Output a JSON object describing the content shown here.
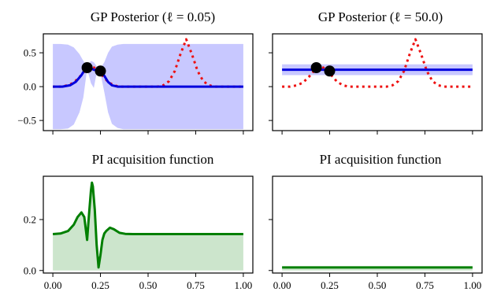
{
  "chart_data": [
    {
      "id": "gp-short",
      "type": "line",
      "title": "GP Posterior (ℓ = 0.05)",
      "xlim": [
        -0.05,
        1.05
      ],
      "ylim": [
        -0.65,
        0.78
      ],
      "xticks": [
        "0.00",
        "0.25",
        "0.50",
        "0.75",
        "1.00"
      ],
      "xtick_values": [
        0,
        0.25,
        0.5,
        0.75,
        1.0
      ],
      "show_xtick_labels": false,
      "yticks": [
        "−0.5",
        "0.0",
        "0.5"
      ],
      "ytick_values": [
        -0.5,
        0,
        0.5
      ],
      "show_ytick_labels": true,
      "series": [
        {
          "kind": "band",
          "color": "#c8c8ff",
          "x": [
            0,
            0.04,
            0.08,
            0.11,
            0.14,
            0.16,
            0.18,
            0.2,
            0.215,
            0.23,
            0.25,
            0.27,
            0.29,
            0.31,
            0.34,
            0.37,
            0.4,
            0.5,
            0.6,
            0.7,
            0.8,
            0.9,
            1.0
          ],
          "upper": [
            0.63,
            0.63,
            0.62,
            0.58,
            0.48,
            0.38,
            0.3,
            0.38,
            0.36,
            0.3,
            0.27,
            0.36,
            0.5,
            0.59,
            0.62,
            0.63,
            0.63,
            0.63,
            0.63,
            0.63,
            0.63,
            0.63,
            0.63
          ],
          "lower": [
            -0.63,
            -0.63,
            -0.62,
            -0.56,
            -0.38,
            -0.16,
            0.26,
            0.05,
            -0.02,
            0.2,
            0.2,
            -0.08,
            -0.38,
            -0.55,
            -0.61,
            -0.63,
            -0.63,
            -0.63,
            -0.63,
            -0.63,
            -0.63,
            -0.63,
            -0.63
          ]
        },
        {
          "kind": "line",
          "style": "dotted",
          "color": "#ee1111",
          "x": [
            0,
            0.04,
            0.08,
            0.11,
            0.14,
            0.17,
            0.19,
            0.21,
            0.23,
            0.25,
            0.27,
            0.29,
            0.32,
            0.35,
            0.4,
            0.45,
            0.5,
            0.55,
            0.58,
            0.61,
            0.64,
            0.67,
            0.7,
            0.73,
            0.76,
            0.79,
            0.82,
            0.85,
            0.88,
            0.9,
            0.95,
            1.0
          ],
          "y": [
            0.0,
            0.0,
            0.02,
            0.06,
            0.14,
            0.24,
            0.28,
            0.29,
            0.26,
            0.2,
            0.13,
            0.07,
            0.02,
            0.0,
            0.0,
            0.0,
            0.0,
            0.0,
            0.02,
            0.08,
            0.23,
            0.48,
            0.7,
            0.48,
            0.23,
            0.08,
            0.02,
            0.0,
            0.0,
            0.0,
            0.0,
            0.0
          ]
        },
        {
          "kind": "line",
          "style": "solid",
          "color": "#0000dd",
          "x": [
            0,
            0.05,
            0.09,
            0.12,
            0.15,
            0.17,
            0.185,
            0.2,
            0.215,
            0.23,
            0.25,
            0.27,
            0.29,
            0.31,
            0.34,
            0.37,
            0.4,
            0.5,
            0.6,
            0.7,
            0.8,
            0.9,
            1.0
          ],
          "y": [
            0,
            0,
            0.02,
            0.07,
            0.17,
            0.26,
            0.28,
            0.27,
            0.25,
            0.24,
            0.23,
            0.16,
            0.07,
            0.02,
            0.0,
            0.0,
            0.0,
            0.0,
            0.0,
            0.0,
            0.0,
            0.0,
            0.0
          ]
        },
        {
          "kind": "points",
          "color": "#000000",
          "x": [
            0.18,
            0.25
          ],
          "y": [
            0.28,
            0.23
          ]
        }
      ]
    },
    {
      "id": "gp-long",
      "type": "line",
      "title": "GP Posterior (ℓ = 50.0)",
      "xlim": [
        -0.05,
        1.05
      ],
      "ylim": [
        -0.65,
        0.78
      ],
      "xticks": [
        "0.00",
        "0.25",
        "0.50",
        "0.75",
        "1.00"
      ],
      "xtick_values": [
        0,
        0.25,
        0.5,
        0.75,
        1.0
      ],
      "show_xtick_labels": false,
      "yticks": [
        "−0.5",
        "0.0",
        "0.5"
      ],
      "ytick_values": [
        -0.5,
        0,
        0.5
      ],
      "show_ytick_labels": false,
      "series": [
        {
          "kind": "band",
          "color": "#c8c8ff",
          "x": [
            0,
            1.0
          ],
          "upper": [
            0.33,
            0.33
          ],
          "lower": [
            0.17,
            0.17
          ]
        },
        {
          "kind": "line",
          "style": "dotted",
          "color": "#ee1111",
          "x": [
            0,
            0.04,
            0.08,
            0.11,
            0.14,
            0.17,
            0.19,
            0.21,
            0.23,
            0.25,
            0.27,
            0.29,
            0.32,
            0.35,
            0.4,
            0.45,
            0.5,
            0.55,
            0.58,
            0.61,
            0.64,
            0.67,
            0.7,
            0.73,
            0.76,
            0.79,
            0.82,
            0.85,
            0.88,
            0.9,
            0.95,
            1.0
          ],
          "y": [
            0.0,
            0.0,
            0.02,
            0.06,
            0.14,
            0.24,
            0.28,
            0.29,
            0.26,
            0.2,
            0.13,
            0.07,
            0.02,
            0.0,
            0.0,
            0.0,
            0.0,
            0.0,
            0.02,
            0.08,
            0.23,
            0.48,
            0.7,
            0.48,
            0.23,
            0.08,
            0.02,
            0.0,
            0.0,
            0.0,
            0.0,
            0.0
          ]
        },
        {
          "kind": "line",
          "style": "solid",
          "color": "#0000dd",
          "x": [
            0,
            1.0
          ],
          "y": [
            0.25,
            0.25
          ]
        },
        {
          "kind": "points",
          "color": "#000000",
          "x": [
            0.18,
            0.25
          ],
          "y": [
            0.28,
            0.23
          ]
        }
      ]
    },
    {
      "id": "pi-short",
      "type": "area",
      "title": "PI acquisition function",
      "xlim": [
        -0.05,
        1.05
      ],
      "ylim": [
        -0.01,
        0.37
      ],
      "xticks": [
        "0.00",
        "0.25",
        "0.50",
        "0.75",
        "1.00"
      ],
      "xtick_values": [
        0,
        0.25,
        0.5,
        0.75,
        1.0
      ],
      "show_xtick_labels": true,
      "yticks": [
        "0.0",
        "0.2"
      ],
      "ytick_values": [
        0,
        0.2
      ],
      "show_ytick_labels": true,
      "series": [
        {
          "kind": "area",
          "style": "solid",
          "color": "#007f00",
          "fill": "#cce5cc",
          "baseline": 0,
          "x": [
            0,
            0.04,
            0.08,
            0.11,
            0.13,
            0.15,
            0.165,
            0.18,
            0.19,
            0.2,
            0.205,
            0.21,
            0.22,
            0.23,
            0.24,
            0.25,
            0.26,
            0.27,
            0.28,
            0.3,
            0.32,
            0.35,
            0.38,
            0.42,
            0.5,
            0.6,
            0.7,
            0.8,
            0.9,
            1.0
          ],
          "y": [
            0.143,
            0.145,
            0.155,
            0.18,
            0.21,
            0.228,
            0.21,
            0.12,
            0.22,
            0.315,
            0.345,
            0.33,
            0.24,
            0.1,
            0.012,
            0.06,
            0.12,
            0.145,
            0.155,
            0.168,
            0.162,
            0.148,
            0.144,
            0.143,
            0.143,
            0.143,
            0.143,
            0.143,
            0.143,
            0.143
          ]
        }
      ]
    },
    {
      "id": "pi-long",
      "type": "area",
      "title": "PI acquisition function",
      "xlim": [
        -0.05,
        1.05
      ],
      "ylim": [
        -0.01,
        0.37
      ],
      "xticks": [
        "0.00",
        "0.25",
        "0.50",
        "0.75",
        "1.00"
      ],
      "xtick_values": [
        0,
        0.25,
        0.5,
        0.75,
        1.0
      ],
      "show_xtick_labels": true,
      "yticks": [
        "0.0",
        "0.2"
      ],
      "ytick_values": [
        0,
        0.2
      ],
      "show_ytick_labels": false,
      "series": [
        {
          "kind": "area",
          "style": "solid",
          "color": "#007f00",
          "fill": "#cce5cc",
          "baseline": 0,
          "x": [
            0,
            1.0
          ],
          "y": [
            0.012,
            0.012
          ]
        }
      ]
    }
  ]
}
